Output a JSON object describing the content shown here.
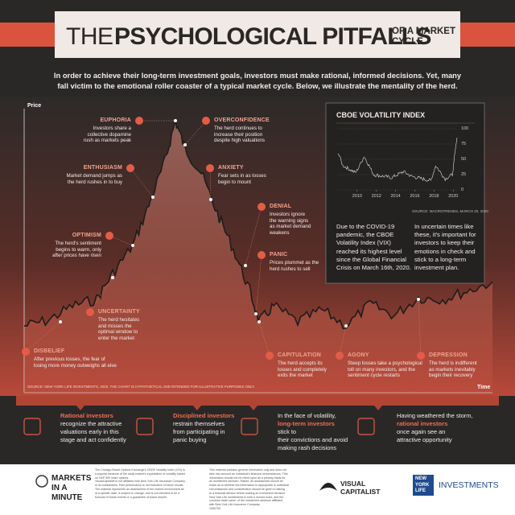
{
  "header": {
    "title_light": "THE",
    "title_bold": "PSYCHOLOGICAL PITFALLS",
    "title_small": [
      "OF A MARKET",
      "CYCLE"
    ]
  },
  "intro": "In order to achieve their long-term investment goals, investors must make rational, informed decisions. Yet, many fall victim to the emotional roller coaster of a typical market cycle. Below, we illustrate the mentality of the herd.",
  "cycle_chart": {
    "y_label": "Price",
    "x_label": "Time",
    "source": "SOURCE: NEW YORK LIFE INVESTMENTS, 2020. THE CHART IS HYPOTHETICAL AND INTENDED FOR ILLUSTRATIVE PURPOSES ONLY.",
    "stages": [
      {
        "name": "EUPHORIA",
        "lines": [
          "Investors share a",
          "collective dopamine",
          "rush as markets peak"
        ]
      },
      {
        "name": "OVERCONFIDENCE",
        "lines": [
          "The herd continues to",
          "increase their position",
          "despite high valuations"
        ]
      },
      {
        "name": "ENTHUSIASM",
        "lines": [
          "Market demand jumps as",
          "the herd rushes in to buy"
        ]
      },
      {
        "name": "ANXIETY",
        "lines": [
          "Fear sets in as losses",
          "begin to mount"
        ]
      },
      {
        "name": "DENIAL",
        "lines": [
          "Investors ignore",
          "the warning signs",
          "as market demand",
          "weakens"
        ]
      },
      {
        "name": "OPTIMISM",
        "lines": [
          "The herd's sentiment",
          "begins to warm, only",
          "after prices have risen"
        ]
      },
      {
        "name": "PANIC",
        "lines": [
          "Prices plummet as the",
          "herd rushes to sell"
        ]
      },
      {
        "name": "UNCERTAINTY",
        "lines": [
          "The herd hesitates",
          "and misses the",
          "optimal window to",
          "enter the market"
        ]
      },
      {
        "name": "DISBELIEF",
        "lines": [
          "After previous losses, the fear of",
          "losing more money outweighs all else"
        ]
      },
      {
        "name": "CAPITULATION",
        "lines": [
          "The herd accepts its",
          "losses and completely",
          "exits the market"
        ]
      },
      {
        "name": "AGONY",
        "lines": [
          "Steep losses take a psychological",
          "toll on many investors, and the",
          "sentiment cycle restarts"
        ]
      },
      {
        "name": "DEPRESSION",
        "lines": [
          "The herd is indifferent",
          "as markets inevitably",
          "begin their recovery"
        ]
      }
    ]
  },
  "vix": {
    "title": "CBOE VOLATILITY INDEX",
    "xlim": [
      2008,
      2020.4
    ],
    "ylim": [
      0,
      100
    ],
    "xticks": [
      2010,
      2012,
      2014,
      2016,
      2018,
      2020
    ],
    "yticks": [
      0,
      25,
      50,
      75,
      100
    ],
    "source": "SOURCE: MACROTRENDS, MARCH 20, 2020",
    "left_text": [
      "Due to the COVID-19",
      "pandemic, the CBOE",
      "Volatility Index (VIX)",
      "reached its highest level",
      "since the Global Financial",
      "Crisis on March 16th, 2020."
    ],
    "right_text": [
      "In uncertain times like",
      "these, it's important for",
      "investors to keep their",
      "emotions in check and",
      "stick to a long-term",
      "investment plan."
    ]
  },
  "panels": [
    {
      "highlight": "Rational investors",
      "after": [
        "recognize the attractive",
        "valuations early in this",
        "stage and act confidently"
      ]
    },
    {
      "highlight": "Disciplined investors",
      "after": [
        "restrain themselves",
        "from participating in",
        "panic buying"
      ]
    },
    {
      "before": "In the face of volatility,",
      "highlight": "long-term investors",
      "after": [
        "stick to",
        "their convictions and avoid",
        "making rash decisions"
      ]
    },
    {
      "before": "Having weathered the storm,",
      "highlight": "rational investors",
      "after": [
        "once again see an",
        "attractive opportunity"
      ]
    }
  ],
  "footer": {
    "brand_lines": [
      "MARKETS",
      "IN A",
      "MINUTE"
    ],
    "fine_print": [
      [
        "The Chicago Board Options Exchange's CBOE Volatility Index (VIX) is",
        "a popular measure of the stock market's expectation of volatility based",
        "on S&P 500 index options.",
        "VisualCapitalist is not affiliated with New York Life Insurance Company",
        "or its subsidiaries. Past performance is not indicative of future results.",
        "The material represents an assessment of the market environment as",
        "of a specific date; is subject to change; and is not intended to be a",
        "forecast of future events or a guarantee of future results."
      ],
      [
        "This material contains general information only and does not",
        "take into account an individual's financial circumstances. This",
        "information should not be relied upon as a primary basis for",
        "an investment decision. Rather, an assessment should be",
        "made as to whether the information is appropriate in individual",
        "circumstances and consideration should be given to talking",
        "to a financial advisor before making an investment decision.",
        "New York Life Investments is both a service mark, and the",
        "common trade name, of the investment advisors affiliated",
        "with New York Life Insurance Company.",
        "1950763"
      ]
    ],
    "vc_logo": [
      "VISUAL",
      "CAPITALIST"
    ],
    "nyl_logo": [
      "NEW",
      "YORK",
      "LIFE"
    ],
    "nyl_investments": "INVESTMENTS"
  }
}
